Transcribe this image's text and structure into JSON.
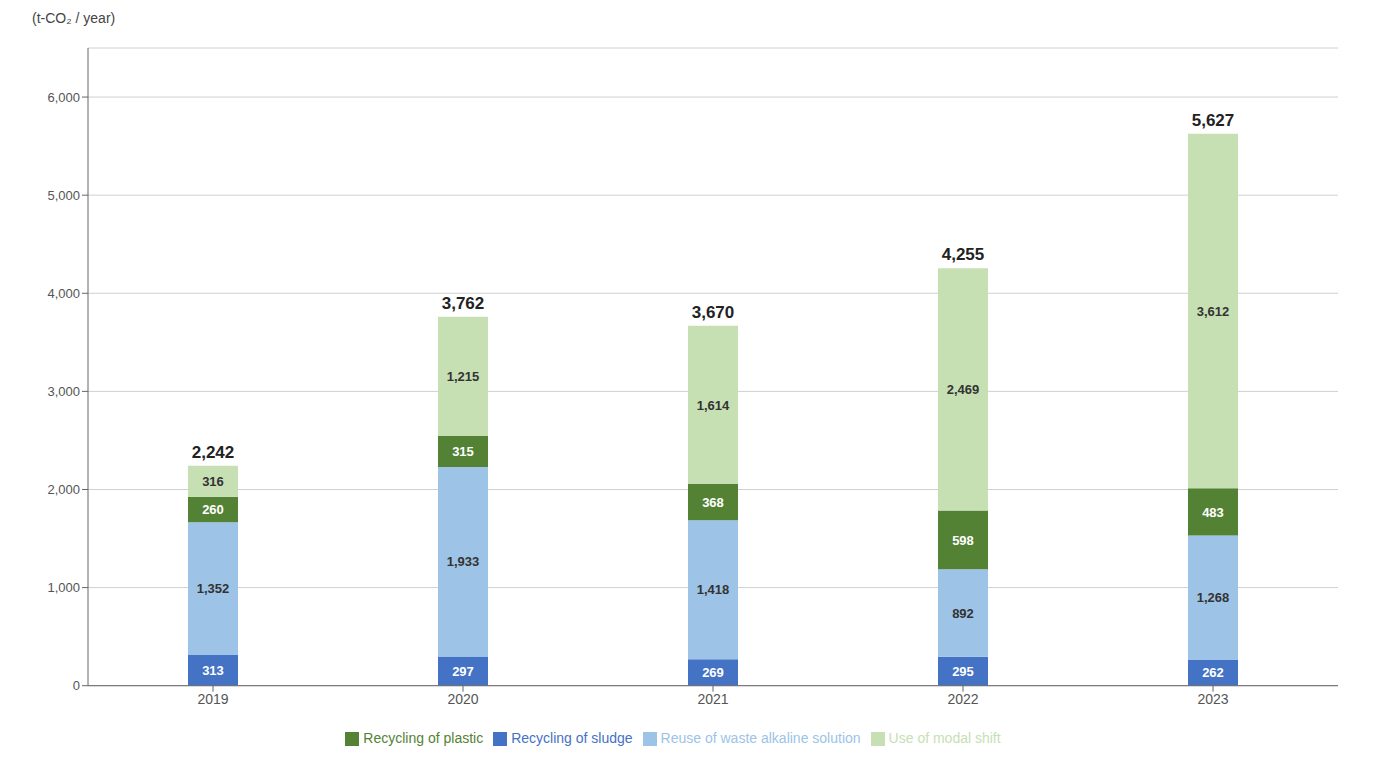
{
  "chart_data": {
    "type": "bar",
    "stacked": true,
    "data_labels": true,
    "grid": true,
    "legend": "bottom",
    "ylabel": "(t-CO₂ / year)",
    "categories": [
      "2019",
      "2020",
      "2021",
      "2022",
      "2023"
    ],
    "series": [
      {
        "name": "Recycling of sludge",
        "color": "#4472C4",
        "values": [
          313,
          297,
          269,
          295,
          262
        ],
        "value_labels": [
          "313",
          "297",
          "269",
          "295",
          "262"
        ]
      },
      {
        "name": "Reuse of waste alkaline solution",
        "color": "#9DC3E6",
        "values": [
          1352,
          1933,
          1418,
          892,
          1268
        ],
        "value_labels": [
          "1,352",
          "1,933",
          "1,418",
          "892",
          "1,268"
        ]
      },
      {
        "name": "Recycling of plastic",
        "color": "#548235",
        "values": [
          260,
          315,
          368,
          598,
          483
        ],
        "value_labels": [
          "260",
          "315",
          "368",
          "598",
          "483"
        ]
      },
      {
        "name": "Use of modal shift",
        "color": "#C6E0B4",
        "values": [
          316,
          1215,
          1614,
          2469,
          3612
        ],
        "value_labels": [
          "316",
          "1,215",
          "1,614",
          "2,469",
          "3,612"
        ]
      }
    ],
    "totals": [
      2242,
      3762,
      3670,
      4255,
      5627
    ],
    "total_labels": [
      "2,242",
      "3,762",
      "3,670",
      "4,255",
      "5,627"
    ],
    "ylim": [
      0,
      6500
    ],
    "yticks": [
      0,
      {
        "value": 1000,
        "label": "1,000"
      },
      {
        "value": 2000,
        "label": "2,000"
      },
      {
        "value": 3000,
        "label": "3,000"
      },
      {
        "value": 4000,
        "label": "4,000"
      },
      {
        "value": 5000,
        "label": "5,000"
      },
      {
        "value": 6000,
        "label": "6,000"
      }
    ]
  }
}
